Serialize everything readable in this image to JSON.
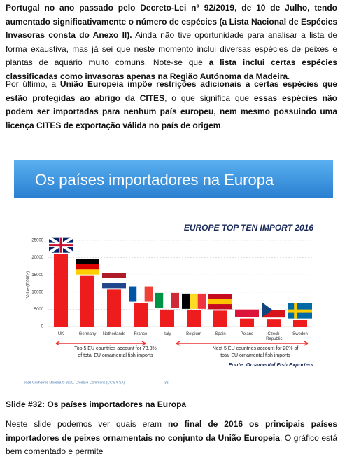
{
  "paragraphs": [
    [
      {
        "text": "Portugal no ano passado pelo Decreto-Lei nº 92/2019, de 10 de Julho, tendo aumentado significativamente o número de espécies (a Lista Nacional de Espécies Invasoras consta do Anexo II).",
        "bold": true
      },
      {
        "text": " Ainda não tive oportunidade para analisar a lista de forma exaustiva, mas já sei que neste momento inclui diversas espécies de peixes e plantas de aquário muito comuns. Note-se que ",
        "bold": false
      },
      {
        "text": "a lista inclui certas espécies classificadas como invasoras apenas na Região Autónoma da Madeira",
        "bold": true
      },
      {
        "text": ".",
        "bold": false
      }
    ],
    [
      {
        "text": "Por último, a ",
        "bold": false
      },
      {
        "text": "União Europeia impõe restrições adicionais a certas espécies que estão protegidas ao abrigo da CITES",
        "bold": true
      },
      {
        "text": ", o que significa que ",
        "bold": false
      },
      {
        "text": "essas espécies não podem ser importadas para nenhum país europeu, nem mesmo possuindo uma licença CITES de exportação válida no país de origem",
        "bold": true
      },
      {
        "text": ".",
        "bold": false
      }
    ]
  ],
  "slide": {
    "header": "Os países importadores na Europa",
    "chart_data": {
      "type": "bar",
      "title": "EUROPE TOP TEN IMPORT 2016",
      "y_label": "Value (€ 000s)",
      "categories": [
        "UK",
        "Germany",
        "Netherlands",
        "France",
        "Italy",
        "Belgium",
        "Spain",
        "Poland",
        "Czech Republic",
        "Sweden"
      ],
      "values": [
        21000,
        14700,
        10700,
        6800,
        4900,
        4700,
        4600,
        2300,
        2200,
        1900
      ],
      "color": "#ee1c1c",
      "ylim": [
        0,
        25000
      ],
      "yticks": [
        0,
        5000,
        10000,
        15000,
        20000,
        25000
      ],
      "grid": true
    },
    "notes": [
      [
        "Top 5 EU countries account for 73.8%",
        "of total EU ornamental fish imports"
      ],
      [
        "Next 5 EU countries account for 20% of",
        "total EU ornamental fish imports"
      ]
    ],
    "source": "Fonte: Ornamental Fish Exporters",
    "footer": "José Guilherme Moreira © 2020. Creative Commons (CC BY-SA)",
    "page": "32"
  },
  "heading": "Slide #32: Os países importadores na Europa",
  "last_paragraph": [
    {
      "text": "Neste slide podemos ver quais eram ",
      "bold": false
    },
    {
      "text": "no final de 2016 os principais países importadores de peixes ornamentais no conjunto da União Europeia",
      "bold": true
    },
    {
      "text": ". O gráfico está bem comentado e permite",
      "bold": false
    }
  ]
}
